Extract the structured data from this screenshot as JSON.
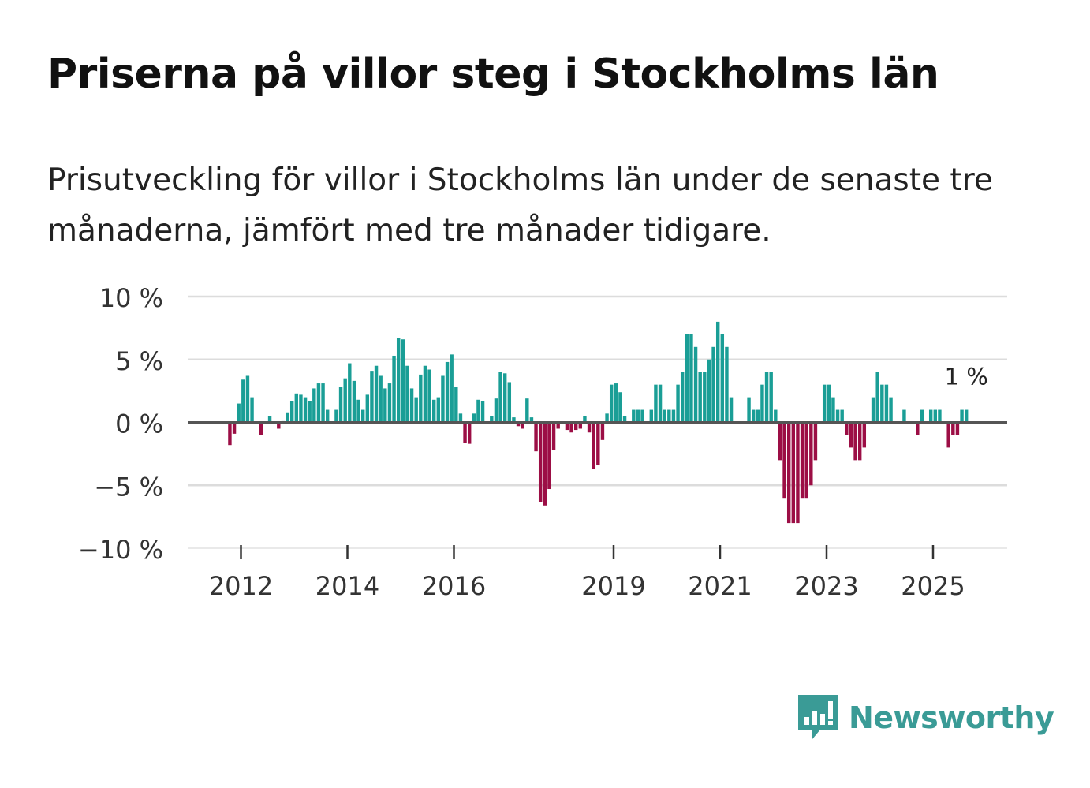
{
  "title": "Priserna på villor steg i Stockholms län",
  "subtitle": "Prisutveckling för villor i Stockholms län under de senaste tre månaderna, jämfört med tre månader tidigare.",
  "brand": "Newsworthy",
  "colors": {
    "positive": "#1a9e96",
    "negative": "#9c0e45",
    "grid": "#dcdcdc",
    "zero_line": "#555555",
    "brand": "#3a9b96"
  },
  "chart_data": {
    "type": "bar",
    "title": "Priserna på villor steg i Stockholms län",
    "xlabel": "",
    "ylabel": "",
    "ylim": [
      -10,
      10
    ],
    "x_start": "2011-01",
    "x_end": "2026-06",
    "y_ticks": [
      {
        "value": 10,
        "label": "10 %"
      },
      {
        "value": 5,
        "label": "5 %"
      },
      {
        "value": 0,
        "label": "0 %"
      },
      {
        "value": -5,
        "label": "−5 %"
      },
      {
        "value": -10,
        "label": "−10 %"
      }
    ],
    "x_ticks": [
      {
        "year": 2012,
        "label": "2012"
      },
      {
        "year": 2014,
        "label": "2014"
      },
      {
        "year": 2016,
        "label": "2016"
      },
      {
        "year": 2019,
        "label": "2019"
      },
      {
        "year": 2021,
        "label": "2021"
      },
      {
        "year": 2023,
        "label": "2023"
      },
      {
        "year": 2025,
        "label": "2025"
      }
    ],
    "annotation": {
      "label": "1 %",
      "value": 1
    },
    "series": [
      {
        "name": "Prisutveckling",
        "start": "2011-10",
        "values": [
          -1.8,
          -0.9,
          1.5,
          3.4,
          3.7,
          2.0,
          0.0,
          -1.0,
          0.0,
          0.5,
          0.0,
          -0.5,
          0.1,
          0.8,
          1.7,
          2.3,
          2.2,
          2.0,
          1.7,
          2.7,
          3.1,
          3.1,
          1.0,
          0.0,
          1.0,
          2.8,
          3.5,
          4.7,
          3.3,
          1.8,
          1.0,
          2.2,
          4.1,
          4.5,
          3.7,
          2.7,
          3.1,
          5.3,
          6.7,
          6.6,
          4.5,
          2.7,
          2.0,
          3.8,
          4.5,
          4.2,
          1.8,
          2.0,
          3.7,
          4.8,
          5.4,
          2.8,
          0.7,
          -1.6,
          -1.7,
          0.7,
          1.8,
          1.7,
          0.0,
          0.5,
          1.9,
          4.0,
          3.9,
          3.2,
          0.4,
          -0.3,
          -0.5,
          1.9,
          0.4,
          -2.3,
          -6.3,
          -6.6,
          -5.3,
          -2.2,
          -0.5,
          0.0,
          -0.6,
          -0.8,
          -0.6,
          -0.5,
          0.5,
          -0.8,
          -3.7,
          -3.4,
          -1.4,
          0.7,
          3.0,
          3.1,
          2.4,
          0.5,
          0.0,
          1.0,
          1.0,
          1.0,
          0.0,
          1.0,
          3.0,
          3.0,
          1.0,
          1.0,
          1.0,
          3.0,
          4.0,
          7.0,
          7.0,
          6.0,
          4.0,
          4.0,
          5.0,
          6.0,
          8.0,
          7.0,
          6.0,
          2.0,
          0.0,
          0.0,
          0.0,
          2.0,
          1.0,
          1.0,
          3.0,
          4.0,
          4.0,
          1.0,
          -3.0,
          -6.0,
          -8.0,
          -8.0,
          -8.0,
          -6.0,
          -6.0,
          -5.0,
          -3.0,
          0.0,
          3.0,
          3.0,
          2.0,
          1.0,
          1.0,
          -1.0,
          -2.0,
          -3.0,
          -3.0,
          -2.0,
          0.0,
          2.0,
          4.0,
          3.0,
          3.0,
          2.0,
          0.0,
          0.0,
          1.0,
          0.0,
          0.0,
          -1.0,
          1.0,
          0.0,
          1.0,
          1.0,
          1.0,
          0.0,
          -2.0,
          -1.0,
          -1.0,
          1.0,
          1.0
        ]
      }
    ]
  }
}
